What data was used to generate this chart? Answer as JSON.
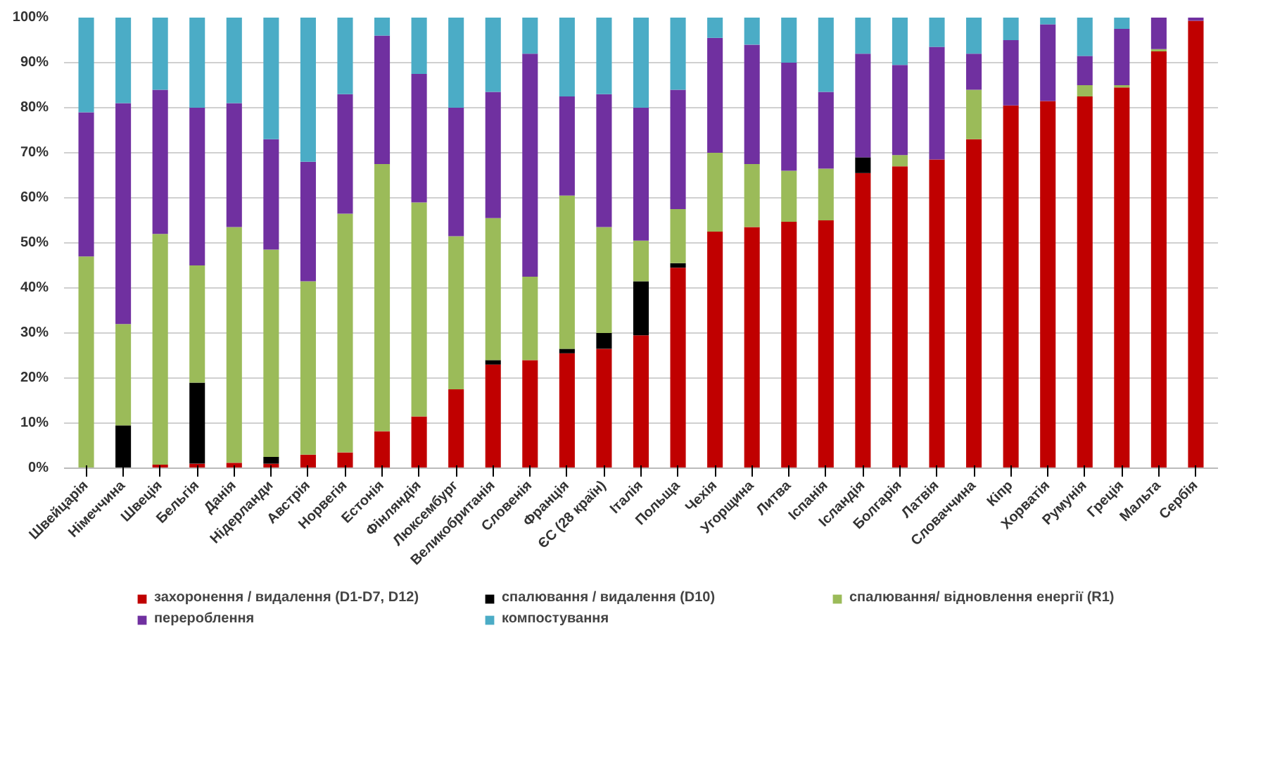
{
  "chart_data": {
    "type": "bar",
    "stacked": true,
    "categories": [
      "Швейцарія",
      "Німеччина",
      "Швеція",
      "Бельгія",
      "Данія",
      "Нідерланди",
      "Австрія",
      "Норвегія",
      "Естонія",
      "Фінляндія",
      "Люксембург",
      "Великобританія",
      "Словенія",
      "Франція",
      "ЄС (28 країн)",
      "Італія",
      "Польща",
      "Чехія",
      "Угорщина",
      "Литва",
      "Іспанія",
      "Ісландія",
      "Болгарія",
      "Латвія",
      "Словаччина",
      "Кіпр",
      "Хорватія",
      "Румунія",
      "Греція",
      "Мальта",
      "Сербія"
    ],
    "series": [
      {
        "name": "захоронення / видалення (D1-D7, D12)",
        "color": "#c00000",
        "values": [
          0,
          0,
          0.8,
          1,
          1.2,
          1,
          3,
          3.5,
          8.2,
          11.5,
          17.5,
          23,
          24,
          25.5,
          26.5,
          29.5,
          44.5,
          52.5,
          53.5,
          54.7,
          55,
          65.5,
          67,
          68.5,
          73,
          80.5,
          81.5,
          82.5,
          84.5,
          92.5,
          99.3
        ]
      },
      {
        "name": "спалювання / видалення (D10)",
        "color": "#000000",
        "values": [
          0,
          9.5,
          0,
          18,
          0,
          1.5,
          0,
          0,
          0,
          0,
          0,
          1,
          0,
          1,
          3.5,
          12,
          1,
          0,
          0,
          0,
          0,
          3.5,
          0,
          0,
          0,
          0,
          0,
          0,
          0,
          0,
          0
        ]
      },
      {
        "name": "спалювання/ відновлення енергії (R1)",
        "color": "#9bbb59",
        "values": [
          47,
          22.5,
          51.2,
          26,
          52.3,
          46,
          38.5,
          53,
          59.3,
          47.5,
          34,
          31.5,
          18.5,
          34,
          23.5,
          9,
          12,
          17.5,
          14,
          11.3,
          11.5,
          0,
          2.5,
          0,
          11,
          0,
          0,
          2.5,
          0.5,
          0.5,
          0
        ]
      },
      {
        "name": "перероблення",
        "color": "#7030a0",
        "values": [
          32,
          49,
          32,
          35,
          27.5,
          24.5,
          26.5,
          26.5,
          28.5,
          28.5,
          28.5,
          28,
          49.5,
          22,
          29.5,
          29.5,
          26.5,
          25.5,
          26.5,
          24,
          17,
          23,
          20,
          25,
          8,
          14.5,
          17,
          6.5,
          12.5,
          7,
          0.7
        ]
      },
      {
        "name": "компостування",
        "color": "#4bacc6",
        "values": [
          21,
          19,
          16,
          20,
          19,
          27,
          32,
          17,
          4,
          12.5,
          20,
          16.5,
          8,
          17.5,
          17,
          20,
          16,
          4.5,
          6,
          10,
          16.5,
          8,
          10.5,
          6.5,
          8,
          5,
          1.5,
          8.5,
          2.5,
          0,
          0
        ]
      }
    ],
    "ylim": [
      0,
      100
    ],
    "yticks": [
      {
        "value": 0,
        "label": "0%"
      },
      {
        "value": 10,
        "label": "10%"
      },
      {
        "value": 20,
        "label": "20%"
      },
      {
        "value": 30,
        "label": "30%"
      },
      {
        "value": 40,
        "label": "40%"
      },
      {
        "value": 50,
        "label": "50%"
      },
      {
        "value": 60,
        "label": "60%"
      },
      {
        "value": 70,
        "label": "70%"
      },
      {
        "value": 80,
        "label": "80%"
      },
      {
        "value": 90,
        "label": "90%"
      },
      {
        "value": 100,
        "label": "100%"
      }
    ],
    "grid": "y",
    "legend": "bottom"
  }
}
